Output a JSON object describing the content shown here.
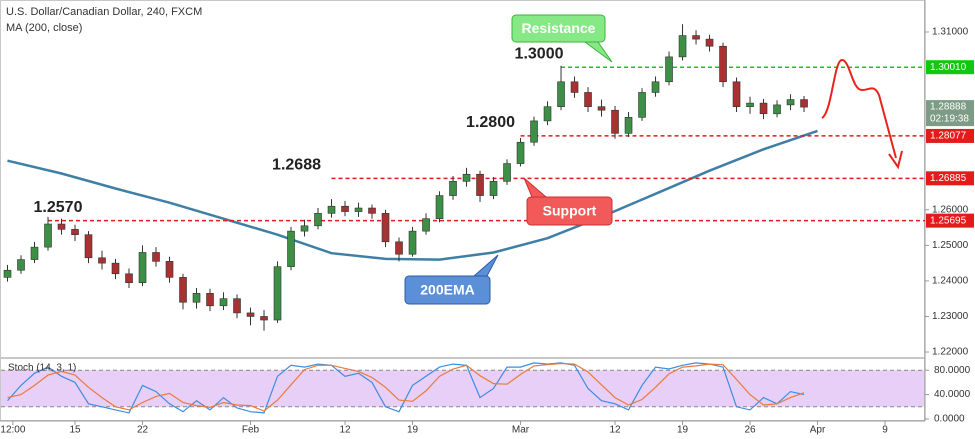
{
  "chart_data": [
    {
      "type": "candlestick",
      "title": "U.S. Dollar/Canadian Dollar, 240, FXCM",
      "x": [
        -5,
        -4,
        -3,
        -2,
        -1,
        0,
        1,
        2,
        3,
        4,
        5,
        6,
        7,
        8,
        9,
        10,
        11,
        12,
        13,
        14,
        15,
        16,
        17,
        18,
        19,
        20,
        21,
        22,
        23,
        24,
        25,
        26,
        27,
        28,
        29,
        30,
        31,
        32,
        33,
        34,
        35,
        36,
        37,
        38,
        39,
        40,
        41,
        42,
        43,
        44,
        45,
        46,
        47,
        48,
        49,
        50,
        51,
        52,
        53,
        54
      ],
      "open": [
        1.241,
        1.243,
        1.246,
        1.2495,
        1.256,
        1.2545,
        1.253,
        1.2465,
        1.245,
        1.242,
        1.2395,
        1.248,
        1.2455,
        1.241,
        1.234,
        1.2365,
        1.233,
        1.235,
        1.231,
        1.23,
        1.229,
        1.244,
        1.254,
        1.2555,
        1.259,
        1.261,
        1.2595,
        1.2605,
        1.259,
        1.251,
        1.2475,
        1.254,
        1.2575,
        1.264,
        1.268,
        1.27,
        1.264,
        1.268,
        1.273,
        1.279,
        1.285,
        1.289,
        1.296,
        1.293,
        1.289,
        1.288,
        1.2815,
        1.286,
        1.293,
        1.296,
        1.303,
        1.309,
        1.308,
        1.306,
        1.296,
        1.289,
        1.29,
        1.287,
        1.2895,
        1.291
      ],
      "high": [
        1.2445,
        1.2472,
        1.251,
        1.258,
        1.2575,
        1.2558,
        1.254,
        1.2485,
        1.2462,
        1.2435,
        1.25,
        1.2495,
        1.2468,
        1.242,
        1.238,
        1.2378,
        1.2368,
        1.2362,
        1.2325,
        1.2318,
        1.2455,
        1.2552,
        1.2572,
        1.2605,
        1.263,
        1.2625,
        1.262,
        1.2615,
        1.26,
        1.2522,
        1.2552,
        1.259,
        1.2652,
        1.2695,
        1.2718,
        1.271,
        1.2692,
        1.2742,
        1.2802,
        1.2862,
        1.2905,
        1.3005,
        1.2975,
        1.2945,
        1.291,
        1.2892,
        1.2875,
        1.2942,
        1.2975,
        1.3045,
        1.3122,
        1.3105,
        1.3092,
        1.307,
        1.2972,
        1.2918,
        1.2912,
        1.2908,
        1.2925,
        1.292
      ],
      "low": [
        1.2398,
        1.242,
        1.245,
        1.2485,
        1.253,
        1.2512,
        1.245,
        1.2432,
        1.2405,
        1.238,
        1.2385,
        1.244,
        1.2395,
        1.232,
        1.2322,
        1.2315,
        1.2318,
        1.2295,
        1.2275,
        1.226,
        1.2282,
        1.243,
        1.2525,
        1.2545,
        1.2578,
        1.2582,
        1.258,
        1.2575,
        1.2495,
        1.2455,
        1.2468,
        1.253,
        1.2565,
        1.2628,
        1.2665,
        1.2622,
        1.263,
        1.267,
        1.2722,
        1.278,
        1.2838,
        1.288,
        1.2915,
        1.2875,
        1.2862,
        1.28,
        1.2805,
        1.285,
        1.2918,
        1.295,
        1.302,
        1.3065,
        1.3045,
        1.2945,
        1.2875,
        1.287,
        1.2855,
        1.286,
        1.288,
        1.2875
      ],
      "close": [
        1.243,
        1.246,
        1.2495,
        1.256,
        1.2545,
        1.253,
        1.2465,
        1.245,
        1.242,
        1.2395,
        1.248,
        1.2455,
        1.241,
        1.234,
        1.2365,
        1.233,
        1.235,
        1.231,
        1.23,
        1.229,
        1.244,
        1.254,
        1.2555,
        1.259,
        1.261,
        1.2595,
        1.2605,
        1.259,
        1.251,
        1.2475,
        1.254,
        1.2575,
        1.264,
        1.268,
        1.27,
        1.264,
        1.268,
        1.273,
        1.279,
        1.285,
        1.289,
        1.296,
        1.293,
        1.289,
        1.288,
        1.2815,
        1.286,
        1.293,
        1.296,
        1.303,
        1.309,
        1.308,
        1.306,
        1.296,
        1.289,
        1.29,
        1.287,
        1.2895,
        1.291,
        1.28888
      ],
      "up_color": "#3c8f45",
      "down_color": "#a63232",
      "ma": {
        "name": "MA (200, close)",
        "color": "#3f7fa6",
        "x": [
          -5,
          -1,
          3,
          7,
          11,
          15,
          19,
          23,
          27,
          31,
          35,
          39,
          43,
          47,
          51,
          55
        ],
        "values": [
          1.2738,
          1.2702,
          1.266,
          1.262,
          1.2575,
          1.253,
          1.2478,
          1.2462,
          1.246,
          1.248,
          1.252,
          1.258,
          1.2645,
          1.271,
          1.277,
          1.2822
        ]
      },
      "xlim": [
        -5.556,
        62.96
      ],
      "ylim": [
        1.2186,
        1.319
      ],
      "yticks": [
        {
          "value": 1.31,
          "label": "1.31000"
        },
        {
          "value": 1.26,
          "label": "1.26000"
        },
        {
          "value": 1.25,
          "label": "1.25000"
        },
        {
          "value": 1.24,
          "label": "1.24000"
        },
        {
          "value": 1.23,
          "label": "1.23000"
        },
        {
          "value": 1.22,
          "label": "1.22000"
        }
      ],
      "levels": [
        {
          "value": 1.3001,
          "label": "1.30010",
          "annotation": "1.3000",
          "from": 36,
          "color": "#11c811"
        },
        {
          "value": 1.28077,
          "label": "1.28077",
          "annotation": "1.2800",
          "from": 33,
          "color": "#e31b1b"
        },
        {
          "value": 1.26885,
          "label": "1.26885",
          "annotation": "1.2688",
          "from": 19,
          "color": "#e31b1b"
        },
        {
          "value": 1.25695,
          "label": "1.25695",
          "annotation": "1.2570",
          "from": -2,
          "color": "#e31b1b"
        }
      ],
      "last_price": 1.28888,
      "countdown": "02:19:38",
      "callouts": [
        {
          "text": "Resistance",
          "color": "#86e986",
          "border": "#3cb43c"
        },
        {
          "text": "Support",
          "color": "#f25a5a",
          "border": "#c83232"
        },
        {
          "text": "200EMA",
          "color": "#5b8fd8",
          "border": "#2c5ea8"
        }
      ]
    },
    {
      "type": "line",
      "title": "Stoch (14, 3, 1)",
      "x": [
        -5,
        -4,
        -3,
        -2,
        -1,
        0,
        1,
        2,
        3,
        4,
        5,
        6,
        7,
        8,
        9,
        10,
        11,
        12,
        13,
        14,
        15,
        16,
        17,
        18,
        19,
        20,
        21,
        22,
        23,
        24,
        25,
        26,
        27,
        28,
        29,
        30,
        31,
        32,
        33,
        34,
        35,
        36,
        37,
        38,
        39,
        40,
        41,
        42,
        43,
        44,
        45,
        46,
        47,
        48,
        49,
        50,
        51,
        52,
        53,
        54
      ],
      "series": [
        {
          "color": "#3b8ee0",
          "values": [
            30,
            55,
            75,
            85,
            70,
            60,
            25,
            20,
            15,
            10,
            55,
            45,
            25,
            12,
            30,
            15,
            35,
            18,
            12,
            10,
            70,
            88,
            85,
            90,
            88,
            70,
            75,
            60,
            20,
            12,
            55,
            70,
            85,
            90,
            88,
            35,
            50,
            85,
            85,
            92,
            90,
            92,
            88,
            50,
            30,
            25,
            15,
            55,
            85,
            82,
            88,
            92,
            90,
            85,
            20,
            15,
            35,
            25,
            45,
            40
          ]
        },
        {
          "color": "#ea7a3c",
          "values": [
            35,
            40,
            55,
            72,
            78,
            72,
            52,
            35,
            20,
            15,
            27,
            37,
            42,
            27,
            22,
            19,
            27,
            23,
            22,
            13,
            31,
            56,
            81,
            88,
            88,
            83,
            78,
            68,
            52,
            31,
            29,
            46,
            70,
            82,
            88,
            71,
            58,
            57,
            73,
            87,
            89,
            91,
            90,
            77,
            56,
            35,
            23,
            32,
            52,
            74,
            85,
            87,
            90,
            89,
            65,
            40,
            23,
            25,
            35,
            43
          ]
        }
      ],
      "band": [
        20,
        80
      ],
      "band_color": "#e4c7f6",
      "xlim": [
        -5.556,
        62.96
      ],
      "ylim": [
        0,
        100
      ],
      "yticks": [
        {
          "value": 80,
          "label": "80.0000"
        },
        {
          "value": 40,
          "label": "40.0000"
        },
        {
          "value": 0,
          "label": "0.0000"
        }
      ],
      "xticks": [
        {
          "value": -4.6,
          "label": "12:00"
        },
        {
          "value": 0,
          "label": "15"
        },
        {
          "value": 5,
          "label": "22"
        },
        {
          "value": 13,
          "label": "Feb"
        },
        {
          "value": 20,
          "label": "12"
        },
        {
          "value": 25,
          "label": "19"
        },
        {
          "value": 33,
          "label": "Mar"
        },
        {
          "value": 40,
          "label": "12"
        },
        {
          "value": 45,
          "label": "19"
        },
        {
          "value": 50,
          "label": "26"
        },
        {
          "value": 55,
          "label": "Apr"
        },
        {
          "value": 60,
          "label": "9"
        }
      ]
    }
  ]
}
